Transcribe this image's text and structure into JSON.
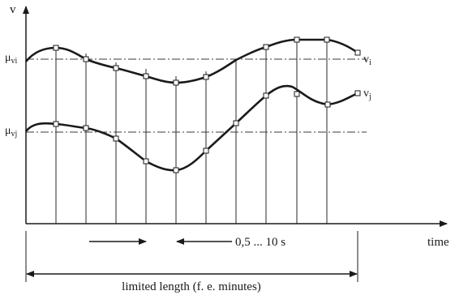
{
  "axes": {
    "y_label": "v",
    "x_label": "time"
  },
  "means": {
    "vi": {
      "symbol": "μ",
      "subscript": "vi"
    },
    "vj": {
      "symbol": "μ",
      "subscript": "vj"
    }
  },
  "signals": {
    "vi": {
      "name": "v",
      "subscript": "i"
    },
    "vj": {
      "name": "v",
      "subscript": "j"
    }
  },
  "annotations": {
    "sampling_interval": "0,5 ... 10 s",
    "total_length": "limited length (f. e. minutes)"
  }
}
